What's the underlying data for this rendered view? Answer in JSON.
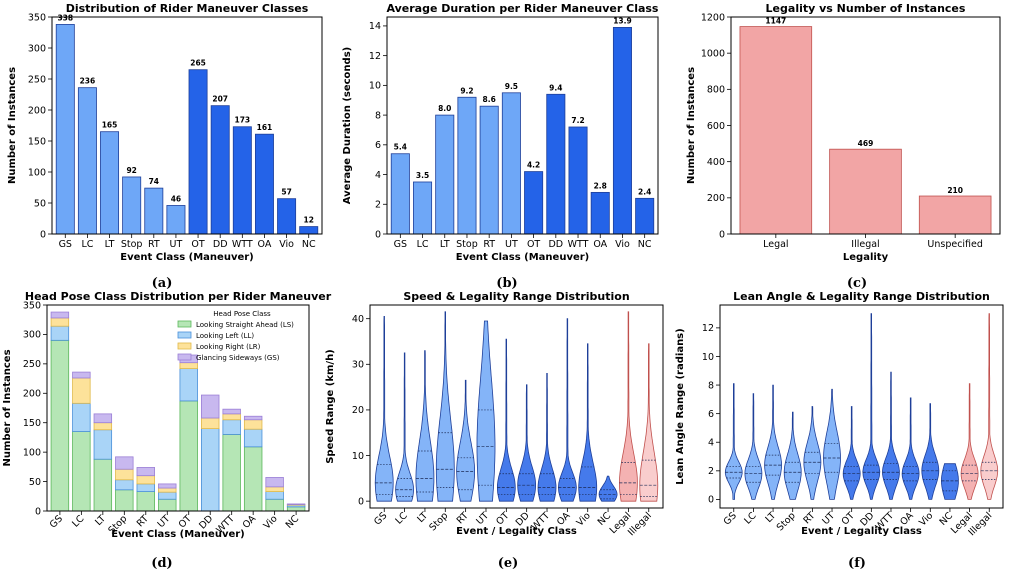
{
  "colors": {
    "light_blue": "#6ea7f7",
    "dark_blue": "#2463e8",
    "edge_blue": "#1e3f99",
    "salmon": "#f2a5a5",
    "salmon_edge": "#c0504d",
    "green": "#b5e6b5",
    "sky": "#a9d4f7",
    "yellow": "#fde29a",
    "lavender": "#c8b8ef"
  },
  "captions": [
    "(a)",
    "(b)",
    "(c)",
    "(d)",
    "(e)",
    "(f)"
  ],
  "chart_data": [
    {
      "id": "a",
      "type": "bar",
      "title": "Distribution of Rider Maneuver Classes",
      "xlabel": "Event Class (Maneuver)",
      "ylabel": "Number of Instances",
      "categories": [
        "GS",
        "LC",
        "LT",
        "Stop",
        "RT",
        "UT",
        "OT",
        "DD",
        "WTT",
        "OA",
        "Vio",
        "NC"
      ],
      "values": [
        338,
        236,
        165,
        92,
        74,
        46,
        265,
        207,
        173,
        161,
        57,
        12
      ],
      "labels": [
        "338",
        "236",
        "165",
        "92",
        "74",
        "46",
        "265",
        "207",
        "173",
        "161",
        "57",
        "12"
      ],
      "ylim": [
        0,
        350
      ],
      "yticks": [
        0,
        50,
        100,
        150,
        200,
        250,
        300,
        350
      ]
    },
    {
      "id": "b",
      "type": "bar",
      "title": "Average Duration per Rider Maneuver Class",
      "xlabel": "Event Class (Maneuver)",
      "ylabel": "Average Duration (seconds)",
      "categories": [
        "GS",
        "LC",
        "LT",
        "Stop",
        "RT",
        "UT",
        "OT",
        "DD",
        "WTT",
        "OA",
        "Vio",
        "NC"
      ],
      "values": [
        5.4,
        3.5,
        8.0,
        9.2,
        8.6,
        9.5,
        4.2,
        9.4,
        7.2,
        2.8,
        13.9,
        2.4
      ],
      "labels": [
        "5.4",
        "3.5",
        "8.0",
        "9.2",
        "8.6",
        "9.5",
        "4.2",
        "9.4",
        "7.2",
        "2.8",
        "13.9",
        "2.4"
      ],
      "ylim": [
        0,
        14.6
      ],
      "yticks": [
        0,
        2,
        4,
        6,
        8,
        10,
        12,
        14
      ]
    },
    {
      "id": "c",
      "type": "bar",
      "title": "Legality vs Number of Instances",
      "xlabel": "Legality",
      "ylabel": "Number of Instances",
      "categories": [
        "Legal",
        "Illegal",
        "Unspecified"
      ],
      "values": [
        1147,
        469,
        210
      ],
      "labels": [
        "1147",
        "469",
        "210"
      ],
      "ylim": [
        0,
        1200
      ],
      "yticks": [
        0,
        200,
        400,
        600,
        800,
        1000,
        1200
      ]
    },
    {
      "id": "d",
      "type": "bar",
      "title": "Head Pose Class Distribution per Rider Maneuver",
      "xlabel": "Event Class (Maneuver)",
      "ylabel": "Number of Instances",
      "categories": [
        "GS",
        "LC",
        "LT",
        "Stop",
        "RT",
        "UT",
        "OT",
        "DD",
        "WTT",
        "OA",
        "Vio",
        "NC"
      ],
      "legend_title": "Head Pose Class",
      "series": [
        {
          "name": "Looking Straight Ahead (LS)",
          "values": [
            290,
            135,
            88,
            36,
            33,
            20,
            187,
            0,
            130,
            109,
            20,
            7
          ]
        },
        {
          "name": "Looking Left (LL)",
          "values": [
            24,
            48,
            50,
            17,
            13,
            12,
            55,
            140,
            25,
            30,
            13,
            3
          ]
        },
        {
          "name": "Looking Right (LR)",
          "values": [
            14,
            43,
            12,
            18,
            14,
            7,
            10,
            18,
            10,
            16,
            8,
            1
          ]
        },
        {
          "name": "Glancing Sideways (GS)",
          "values": [
            10,
            10,
            15,
            21,
            14,
            7,
            13,
            39,
            8,
            6,
            16,
            1
          ]
        }
      ],
      "ylim": [
        0,
        350
      ],
      "yticks": [
        0,
        50,
        100,
        150,
        200,
        250,
        300,
        350
      ]
    },
    {
      "id": "e",
      "type": "violin",
      "title": "Speed & Legality Range Distribution",
      "xlabel": "Event / Legality Class",
      "ylabel": "Speed Range (km/h)",
      "categories": [
        "GS",
        "LC",
        "LT",
        "Stop",
        "RT",
        "UT",
        "OT",
        "DD",
        "WTT",
        "OA",
        "Vio",
        "NC",
        "Legal",
        "Illegal"
      ],
      "ranges": [
        [
          0,
          40.5
        ],
        [
          0,
          32.5
        ],
        [
          0,
          33
        ],
        [
          0,
          41.5
        ],
        [
          0,
          26.5
        ],
        [
          0,
          39.5
        ],
        [
          0,
          35.5
        ],
        [
          0,
          25.5
        ],
        [
          0,
          28
        ],
        [
          0,
          40
        ],
        [
          0,
          34.5
        ],
        [
          0,
          5.5
        ],
        [
          0,
          41.5
        ],
        [
          0,
          34.5
        ]
      ],
      "quartiles": [
        [
          1.5,
          4,
          8
        ],
        [
          1,
          2.5,
          5
        ],
        [
          2,
          5,
          11
        ],
        [
          3,
          7,
          15
        ],
        [
          2.5,
          6.5,
          9.5
        ],
        [
          3.5,
          12,
          20
        ],
        [
          1.5,
          3,
          6
        ],
        [
          1.5,
          3.5,
          6
        ],
        [
          1.5,
          3,
          6
        ],
        [
          1.5,
          3,
          5
        ],
        [
          1.5,
          3,
          7.5
        ],
        [
          0.5,
          1.5,
          2.5
        ],
        [
          1.5,
          4,
          8.5
        ],
        [
          1,
          3.5,
          9
        ]
      ],
      "ylim": [
        -1.5,
        43
      ],
      "yticks": [
        0,
        10,
        20,
        30,
        40
      ]
    },
    {
      "id": "f",
      "type": "violin",
      "title": "Lean Angle & Legality Range Distribution",
      "xlabel": "Event / Legality Class",
      "ylabel": "Lean Angle Range (radians)",
      "categories": [
        "GS",
        "LC",
        "LT",
        "Stop",
        "RT",
        "UT",
        "OT",
        "DD",
        "WTT",
        "OA",
        "Vio",
        "NC",
        "Legal",
        "Illegal"
      ],
      "ranges": [
        [
          0,
          8.1
        ],
        [
          0,
          7.4
        ],
        [
          0,
          8.0
        ],
        [
          0,
          6.1
        ],
        [
          0,
          6.5
        ],
        [
          0,
          7.7
        ],
        [
          0,
          6.5
        ],
        [
          0,
          13.0
        ],
        [
          0,
          8.9
        ],
        [
          0,
          7.1
        ],
        [
          0,
          6.7
        ],
        [
          0,
          2.5
        ],
        [
          0,
          8.1
        ],
        [
          0,
          13.0
        ]
      ],
      "quartiles": [
        [
          1.5,
          1.9,
          2.3
        ],
        [
          1.2,
          1.8,
          2.3
        ],
        [
          1.7,
          2.4,
          3.1
        ],
        [
          1.2,
          1.9,
          2.6
        ],
        [
          1.8,
          2.6,
          3.3
        ],
        [
          1.9,
          2.9,
          3.9
        ],
        [
          1.3,
          1.8,
          2.3
        ],
        [
          1.4,
          1.9,
          2.4
        ],
        [
          1.4,
          1.9,
          2.5
        ],
        [
          1.3,
          1.8,
          2.3
        ],
        [
          1.4,
          2.0,
          2.6
        ],
        [
          0.6,
          1.3,
          2.0
        ],
        [
          1.3,
          1.8,
          2.4
        ],
        [
          1.4,
          2.0,
          2.6
        ]
      ],
      "ylim": [
        -0.6,
        13.6
      ],
      "yticks": [
        0,
        2,
        4,
        6,
        8,
        10,
        12
      ]
    }
  ]
}
